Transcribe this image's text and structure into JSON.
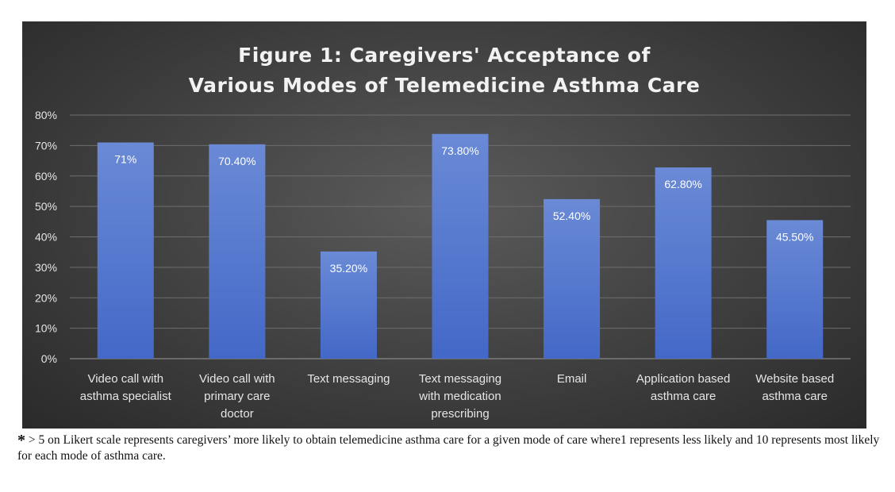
{
  "colors": {
    "bar_top": "#6a8ad6",
    "bar_bottom": "#4468c7",
    "grid": "#6e6e6e",
    "axis_text": "#e6e6e6",
    "label_text": "#ffffff"
  },
  "chart_data": {
    "type": "bar",
    "title_lines": [
      "Figure 1: Caregivers' Acceptance of",
      "Various Modes of Telemedicine Asthma Care"
    ],
    "xlabel": "",
    "ylabel": "",
    "ylim": [
      0,
      80
    ],
    "yticks": [
      "0%",
      "10%",
      "20%",
      "30%",
      "40%",
      "50%",
      "60%",
      "70%",
      "80%"
    ],
    "grid": true,
    "legend": "none",
    "categories": [
      [
        "Video call with",
        "asthma specialist"
      ],
      [
        "Video call with",
        "primary care",
        "doctor"
      ],
      [
        "Text messaging"
      ],
      [
        "Text messaging",
        "with medication",
        "prescribing"
      ],
      [
        "Email"
      ],
      [
        "Application based",
        "asthma care"
      ],
      [
        "Website based",
        "asthma care"
      ]
    ],
    "values": [
      71,
      70.4,
      35.2,
      73.8,
      52.4,
      62.8,
      45.5
    ],
    "data_labels": [
      "71%",
      "70.40%",
      "35.20%",
      "73.80%",
      "52.40%",
      "62.80%",
      "45.50%"
    ]
  },
  "footnote": {
    "star": "*",
    "text": " > 5 on Likert scale represents caregivers’ more likely to obtain telemedicine asthma care for a given mode of care where1 represents less likely and 10 represents most likely for each mode of asthma care."
  }
}
